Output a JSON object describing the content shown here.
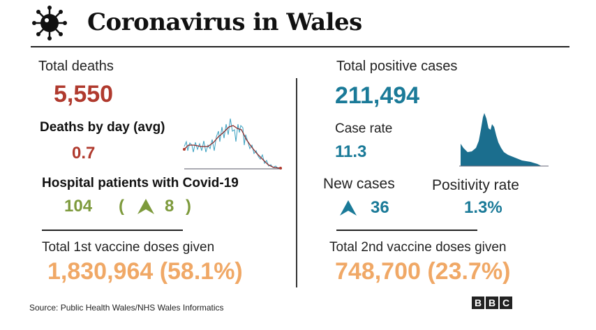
{
  "title": "Coronavirus in Wales",
  "left": {
    "total_deaths_label": "Total deaths",
    "total_deaths": "5,550",
    "deaths_by_day_label": "Deaths by day (avg)",
    "deaths_by_day": "0.7",
    "hospital_label": "Hospital patients with Covid-19",
    "hospital_value": "104",
    "hospital_open": "(",
    "hospital_change": "8",
    "hospital_close": ")",
    "vaccine1_label": "Total 1st vaccine doses given",
    "vaccine1": "1,830,964 (58.1%)"
  },
  "right": {
    "total_cases_label": "Total positive cases",
    "total_cases": "211,494",
    "case_rate_label": "Case rate",
    "case_rate": "11.3",
    "new_cases_label": "New cases",
    "new_cases": "36",
    "positivity_label": "Positivity rate",
    "positivity": "1.3%",
    "vaccine2_label": "Total 2nd vaccine doses given",
    "vaccine2": "748,700 (23.7%)"
  },
  "source": "Source: Public Health Wales/NHS Wales Informatics",
  "logo": "BBC",
  "colors": {
    "red": "#b03a2e",
    "teal": "#1a7a98",
    "green": "#7d9a3c",
    "orange": "#f0a866"
  }
}
